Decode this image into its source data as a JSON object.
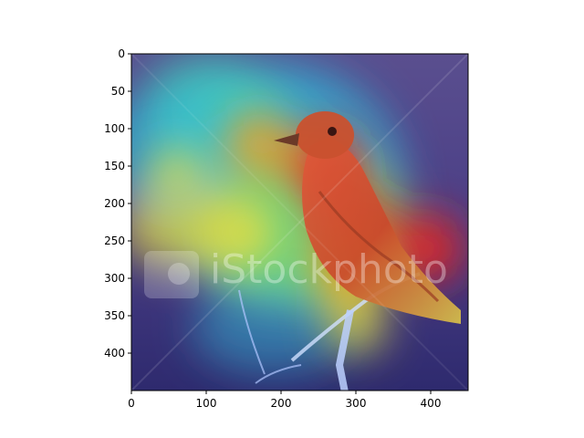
{
  "chart_data": {
    "type": "heatmap",
    "title": "",
    "xlabel": "",
    "ylabel": "",
    "xlim": [
      0,
      450
    ],
    "ylim": [
      450,
      0
    ],
    "x_ticks": [
      0,
      100,
      200,
      300,
      400
    ],
    "y_ticks": [
      0,
      50,
      100,
      150,
      200,
      250,
      300,
      350,
      400
    ],
    "grid": false,
    "colormap": "jet",
    "image_content": "bird-on-branch-photo",
    "watermark": "iStockphoto",
    "hotspots": [
      {
        "x": 260,
        "y": 150,
        "intensity": 1.0
      },
      {
        "x": 300,
        "y": 230,
        "intensity": 0.95
      },
      {
        "x": 395,
        "y": 260,
        "intensity": 0.9
      },
      {
        "x": 290,
        "y": 290,
        "intensity": 0.85
      },
      {
        "x": 170,
        "y": 120,
        "intensity": 0.75
      },
      {
        "x": 150,
        "y": 240,
        "intensity": 0.6
      },
      {
        "x": 60,
        "y": 160,
        "intensity": 0.45
      },
      {
        "x": 300,
        "y": 360,
        "intensity": 0.55
      }
    ]
  }
}
